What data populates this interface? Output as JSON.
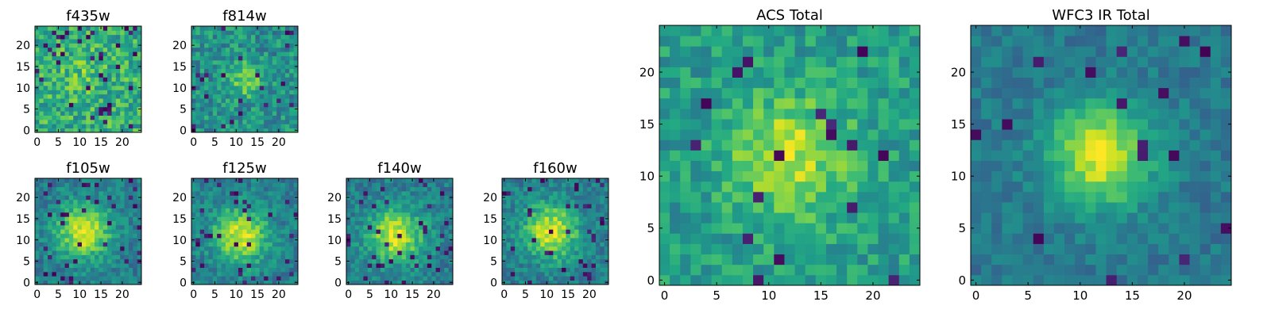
{
  "chart_data": [
    {
      "type": "heatmap",
      "title": "f435w",
      "xlim": [
        0,
        24
      ],
      "ylim": [
        0,
        24
      ],
      "xticks": [
        0,
        5,
        10,
        15,
        20
      ],
      "yticks": [
        0,
        5,
        10,
        15,
        20
      ],
      "x_tick_labels": [
        "0",
        "5",
        "10",
        "15",
        "20"
      ],
      "y_tick_labels": [
        "0",
        "5",
        "10",
        "15",
        "20"
      ],
      "colormap": "viridis",
      "grid_size": 25,
      "peak": [
        11,
        13
      ],
      "profile": "flat-noisy"
    },
    {
      "type": "heatmap",
      "title": "f814w",
      "xlim": [
        0,
        24
      ],
      "ylim": [
        0,
        24
      ],
      "xticks": [
        0,
        5,
        10,
        15,
        20
      ],
      "yticks": [
        0,
        5,
        10,
        15,
        20
      ],
      "x_tick_labels": [
        "0",
        "5",
        "10",
        "15",
        "20"
      ],
      "y_tick_labels": [
        "0",
        "5",
        "10",
        "15",
        "20"
      ],
      "colormap": "viridis",
      "grid_size": 25,
      "peak": [
        12,
        12
      ],
      "profile": "weak-source"
    },
    {
      "type": "heatmap",
      "title": "f105w",
      "xlim": [
        0,
        24
      ],
      "ylim": [
        0,
        24
      ],
      "xticks": [
        0,
        5,
        10,
        15,
        20
      ],
      "yticks": [
        0,
        5,
        10,
        15,
        20
      ],
      "x_tick_labels": [
        "0",
        "5",
        "10",
        "15",
        "20"
      ],
      "y_tick_labels": [
        "0",
        "5",
        "10",
        "15",
        "20"
      ],
      "colormap": "viridis",
      "grid_size": 25,
      "peak": [
        11,
        12
      ],
      "profile": "extended-source"
    },
    {
      "type": "heatmap",
      "title": "f125w",
      "xlim": [
        0,
        24
      ],
      "ylim": [
        0,
        24
      ],
      "xticks": [
        0,
        5,
        10,
        15,
        20
      ],
      "yticks": [
        0,
        5,
        10,
        15,
        20
      ],
      "x_tick_labels": [
        "0",
        "5",
        "10",
        "15",
        "20"
      ],
      "y_tick_labels": [
        "0",
        "5",
        "10",
        "15",
        "20"
      ],
      "colormap": "viridis",
      "grid_size": 25,
      "peak": [
        11,
        11
      ],
      "profile": "extended-source"
    },
    {
      "type": "heatmap",
      "title": "f140w",
      "xlim": [
        0,
        24
      ],
      "ylim": [
        0,
        24
      ],
      "xticks": [
        0,
        5,
        10,
        15,
        20
      ],
      "yticks": [
        0,
        5,
        10,
        15,
        20
      ],
      "x_tick_labels": [
        "0",
        "5",
        "10",
        "15",
        "20"
      ],
      "y_tick_labels": [
        "0",
        "5",
        "10",
        "15",
        "20"
      ],
      "colormap": "viridis",
      "grid_size": 25,
      "peak": [
        11,
        11
      ],
      "profile": "extended-source"
    },
    {
      "type": "heatmap",
      "title": "f160w",
      "xlim": [
        0,
        24
      ],
      "ylim": [
        0,
        24
      ],
      "xticks": [
        0,
        5,
        10,
        15,
        20
      ],
      "yticks": [
        0,
        5,
        10,
        15,
        20
      ],
      "x_tick_labels": [
        "0",
        "5",
        "10",
        "15",
        "20"
      ],
      "y_tick_labels": [
        "0",
        "5",
        "10",
        "15",
        "20"
      ],
      "colormap": "viridis",
      "grid_size": 25,
      "peak": [
        11,
        12
      ],
      "profile": "extended-source"
    },
    {
      "type": "heatmap",
      "title": "ACS Total",
      "xlim": [
        0,
        24
      ],
      "ylim": [
        0,
        24
      ],
      "xticks": [
        0,
        5,
        10,
        15,
        20
      ],
      "yticks": [
        0,
        5,
        10,
        15,
        20
      ],
      "x_tick_labels": [
        "0",
        "5",
        "10",
        "15",
        "20"
      ],
      "y_tick_labels": [
        "0",
        "5",
        "10",
        "15",
        "20"
      ],
      "colormap": "viridis",
      "grid_size": 25,
      "peak": [
        12,
        12
      ],
      "profile": "moderate-source"
    },
    {
      "type": "heatmap",
      "title": "WFC3 IR Total",
      "xlim": [
        0,
        24
      ],
      "ylim": [
        0,
        24
      ],
      "xticks": [
        0,
        5,
        10,
        15,
        20
      ],
      "yticks": [
        0,
        5,
        10,
        15,
        20
      ],
      "x_tick_labels": [
        "0",
        "5",
        "10",
        "15",
        "20"
      ],
      "y_tick_labels": [
        "0",
        "5",
        "10",
        "15",
        "20"
      ],
      "colormap": "viridis",
      "grid_size": 25,
      "peak": [
        12,
        12
      ],
      "profile": "strong-source"
    }
  ]
}
